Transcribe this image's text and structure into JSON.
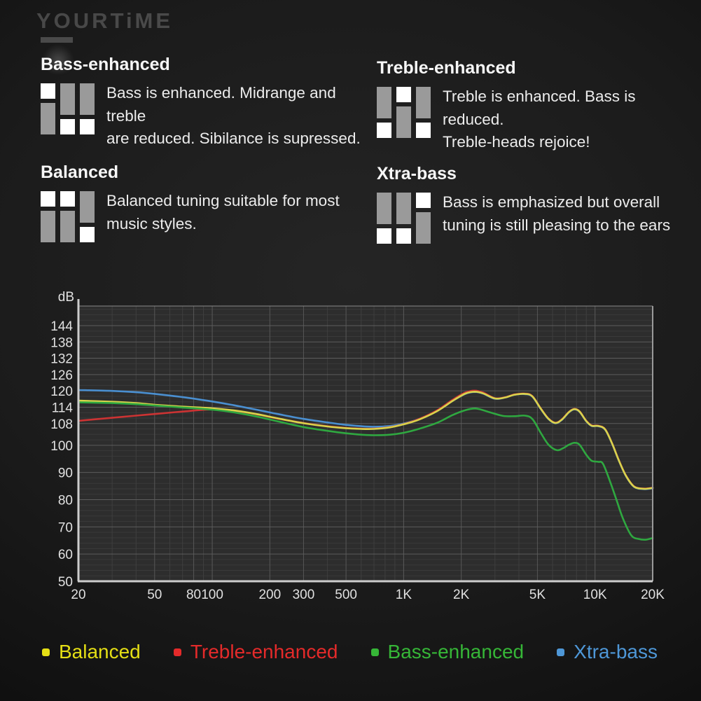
{
  "watermark": {
    "brand": "YOURTiME"
  },
  "features": [
    {
      "title": "Bass-enhanced",
      "switches": [
        "up",
        "down",
        "down"
      ],
      "desc_lines": [
        "Bass is enhanced. Midrange and treble",
        "are reduced. Sibilance is supressed."
      ]
    },
    {
      "title": "Treble-enhanced",
      "switches": [
        "down",
        "up",
        "down"
      ],
      "desc_lines": [
        "Treble is enhanced. Bass is reduced.",
        "Treble-heads rejoice!"
      ]
    },
    {
      "title": "Balanced",
      "switches": [
        "up",
        "up",
        "down"
      ],
      "desc_lines": [
        "Balanced tuning suitable for most",
        "music styles."
      ]
    },
    {
      "title": "Xtra-bass",
      "switches": [
        "down",
        "down",
        "up"
      ],
      "desc_lines": [
        "Bass is emphasized but overall",
        "tuning is still pleasing to the ears"
      ]
    }
  ],
  "chart_data": {
    "type": "line",
    "ylabel": "dB",
    "x_scale": "log",
    "xlim": [
      20,
      20000
    ],
    "ylim": [
      50,
      151.2
    ],
    "grid": true,
    "y_ticks": [
      144,
      138,
      132,
      126,
      120,
      114,
      108,
      100,
      90,
      80,
      70,
      60,
      50
    ],
    "x_ticks": [
      {
        "f": 20,
        "label": "20"
      },
      {
        "f": 50,
        "label": "50"
      },
      {
        "f": 80,
        "label": "80"
      },
      {
        "f": 100,
        "label": "100"
      },
      {
        "f": 200,
        "label": "200"
      },
      {
        "f": 300,
        "label": "300"
      },
      {
        "f": 500,
        "label": "500"
      },
      {
        "f": 1000,
        "label": "1K"
      },
      {
        "f": 2000,
        "label": "2K"
      },
      {
        "f": 5000,
        "label": "5K"
      },
      {
        "f": 10000,
        "label": "10K"
      },
      {
        "f": 20000,
        "label": "20K"
      }
    ],
    "series": [
      {
        "name": "Xtra-bass",
        "color": "#4a8fd0",
        "points": [
          [
            20,
            120.3
          ],
          [
            30,
            120.0
          ],
          [
            40,
            119.5
          ],
          [
            50,
            118.9
          ],
          [
            70,
            117.7
          ],
          [
            100,
            116.1
          ],
          [
            130,
            114.7
          ],
          [
            170,
            113.1
          ],
          [
            220,
            111.5
          ],
          [
            300,
            109.7
          ],
          [
            400,
            108.4
          ],
          [
            500,
            107.5
          ],
          [
            600,
            107.0
          ],
          [
            700,
            106.8
          ],
          [
            850,
            107.1
          ],
          [
            1000,
            108.0
          ],
          [
            1200,
            109.6
          ],
          [
            1500,
            112.7
          ],
          [
            1800,
            116.3
          ],
          [
            2100,
            118.9
          ],
          [
            2350,
            119.6
          ],
          [
            2600,
            119.0
          ],
          [
            3000,
            117.1
          ],
          [
            3400,
            117.6
          ],
          [
            3800,
            118.6
          ],
          [
            4300,
            118.8
          ],
          [
            4700,
            117.9
          ],
          [
            5200,
            113.4
          ],
          [
            5700,
            109.7
          ],
          [
            6200,
            108.1
          ],
          [
            6700,
            109.3
          ],
          [
            7300,
            112.1
          ],
          [
            7800,
            113.2
          ],
          [
            8300,
            112.3
          ],
          [
            9000,
            108.8
          ],
          [
            9600,
            107.1
          ],
          [
            10400,
            107.0
          ],
          [
            11300,
            105.7
          ],
          [
            12300,
            100.4
          ],
          [
            13300,
            94.4
          ],
          [
            14500,
            88.7
          ],
          [
            16000,
            84.7
          ],
          [
            18000,
            83.9
          ],
          [
            20000,
            84.2
          ]
        ]
      },
      {
        "name": "Treble-enhanced",
        "color": "#cc3333",
        "points": [
          [
            20,
            109.0
          ],
          [
            30,
            110.1
          ],
          [
            40,
            110.9
          ],
          [
            50,
            111.5
          ],
          [
            70,
            112.4
          ],
          [
            100,
            113.2
          ],
          [
            130,
            112.7
          ],
          [
            170,
            111.4
          ],
          [
            220,
            109.8
          ],
          [
            300,
            108.2
          ],
          [
            400,
            107.0
          ],
          [
            500,
            106.4
          ],
          [
            600,
            106.1
          ],
          [
            700,
            106.1
          ],
          [
            850,
            106.7
          ],
          [
            1000,
            107.8
          ],
          [
            1200,
            109.6
          ],
          [
            1500,
            112.9
          ],
          [
            1800,
            116.7
          ],
          [
            2100,
            119.4
          ],
          [
            2350,
            120.1
          ],
          [
            2600,
            119.4
          ],
          [
            3000,
            117.3
          ],
          [
            3400,
            117.7
          ],
          [
            3800,
            118.7
          ],
          [
            4300,
            119.0
          ],
          [
            4700,
            118.1
          ],
          [
            5200,
            113.6
          ],
          [
            5700,
            109.9
          ],
          [
            6200,
            108.3
          ],
          [
            6700,
            109.5
          ],
          [
            7300,
            112.3
          ],
          [
            7800,
            113.4
          ],
          [
            8300,
            112.5
          ],
          [
            9000,
            109.0
          ],
          [
            9600,
            107.3
          ],
          [
            10400,
            107.2
          ],
          [
            11300,
            105.9
          ],
          [
            12300,
            100.6
          ],
          [
            13300,
            94.6
          ],
          [
            14500,
            88.9
          ],
          [
            16000,
            84.9
          ],
          [
            18000,
            84.1
          ],
          [
            20000,
            84.4
          ]
        ]
      },
      {
        "name": "Balanced",
        "color": "#d9d34b",
        "points": [
          [
            20,
            116.4
          ],
          [
            30,
            116.0
          ],
          [
            40,
            115.5
          ],
          [
            50,
            114.9
          ],
          [
            70,
            114.2
          ],
          [
            100,
            113.6
          ],
          [
            130,
            112.8
          ],
          [
            170,
            111.5
          ],
          [
            220,
            109.9
          ],
          [
            300,
            108.1
          ],
          [
            400,
            106.9
          ],
          [
            500,
            106.3
          ],
          [
            600,
            106.0
          ],
          [
            700,
            106.0
          ],
          [
            850,
            106.6
          ],
          [
            1000,
            107.7
          ],
          [
            1200,
            109.4
          ],
          [
            1500,
            112.6
          ],
          [
            1800,
            116.3
          ],
          [
            2100,
            119.0
          ],
          [
            2350,
            119.7
          ],
          [
            2600,
            119.1
          ],
          [
            3000,
            117.2
          ],
          [
            3400,
            117.6
          ],
          [
            3800,
            118.6
          ],
          [
            4300,
            118.9
          ],
          [
            4700,
            118.0
          ],
          [
            5200,
            113.5
          ],
          [
            5700,
            109.8
          ],
          [
            6200,
            108.2
          ],
          [
            6700,
            109.4
          ],
          [
            7300,
            112.2
          ],
          [
            7800,
            113.3
          ],
          [
            8300,
            112.4
          ],
          [
            9000,
            108.9
          ],
          [
            9600,
            107.2
          ],
          [
            10400,
            107.1
          ],
          [
            11300,
            105.8
          ],
          [
            12300,
            100.5
          ],
          [
            13300,
            94.5
          ],
          [
            14500,
            88.8
          ],
          [
            16000,
            84.8
          ],
          [
            18000,
            84.0
          ],
          [
            20000,
            84.3
          ]
        ]
      },
      {
        "name": "Bass-enhanced",
        "color": "#2fa840",
        "points": [
          [
            20,
            115.8
          ],
          [
            30,
            115.5
          ],
          [
            40,
            115.1
          ],
          [
            50,
            114.6
          ],
          [
            70,
            113.9
          ],
          [
            100,
            113.1
          ],
          [
            130,
            112.1
          ],
          [
            170,
            110.6
          ],
          [
            220,
            108.8
          ],
          [
            300,
            106.7
          ],
          [
            400,
            105.3
          ],
          [
            500,
            104.4
          ],
          [
            600,
            103.9
          ],
          [
            700,
            103.7
          ],
          [
            850,
            103.9
          ],
          [
            1000,
            104.6
          ],
          [
            1200,
            106.0
          ],
          [
            1500,
            108.3
          ],
          [
            1800,
            111.1
          ],
          [
            2100,
            112.9
          ],
          [
            2400,
            113.5
          ],
          [
            2800,
            112.2
          ],
          [
            3300,
            110.8
          ],
          [
            3800,
            110.7
          ],
          [
            4300,
            110.9
          ],
          [
            4700,
            109.7
          ],
          [
            5200,
            104.6
          ],
          [
            5700,
            100.3
          ],
          [
            6300,
            98.2
          ],
          [
            6800,
            98.9
          ],
          [
            7300,
            100.2
          ],
          [
            7800,
            100.9
          ],
          [
            8300,
            100.2
          ],
          [
            9000,
            96.5
          ],
          [
            9600,
            94.3
          ],
          [
            10400,
            93.9
          ],
          [
            11000,
            93.2
          ],
          [
            12000,
            86.5
          ],
          [
            13000,
            79.5
          ],
          [
            14000,
            73.0
          ],
          [
            15500,
            66.8
          ],
          [
            17000,
            65.5
          ],
          [
            18500,
            65.3
          ],
          [
            20000,
            65.9
          ]
        ]
      }
    ]
  },
  "legend": [
    {
      "label": "Balanced",
      "color": "#e5df15"
    },
    {
      "label": "Treble-enhanced",
      "color": "#e42a2a"
    },
    {
      "label": "Bass-enhanced",
      "color": "#36b637"
    },
    {
      "label": "Xtra-bass",
      "color": "#4e97d7"
    }
  ]
}
